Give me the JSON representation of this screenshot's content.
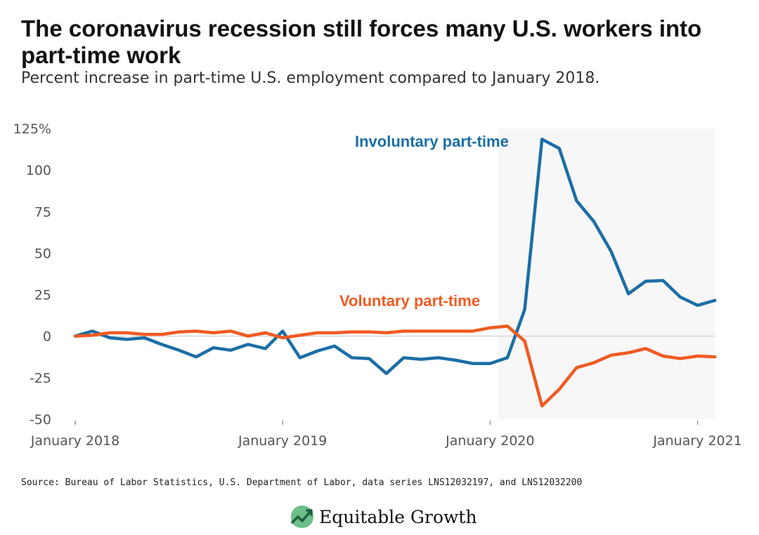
{
  "title": "The coronavirus recession still forces many U.S. workers into part-time work",
  "subtitle": "Percent increase in part-time U.S. employment compared to January 2018.",
  "source": "Source: Bureau of Labor Statistics, U.S. Department of Labor, data series LNS12032197, and LNS12032200",
  "logo_text": "Equitable Growth",
  "colors": {
    "involuntary": "#1a6ea6",
    "voluntary": "#f05a22",
    "shade": "#f7f7f7",
    "zero_line": "#dddddd"
  },
  "chart_data": {
    "type": "line",
    "title": "The coronavirus recession still forces many U.S. workers into part-time work",
    "subtitle": "Percent increase in part-time U.S. employment compared to January 2018.",
    "ylim": [
      -50,
      125
    ],
    "y_ticks": [
      -50,
      -25,
      0,
      25,
      50,
      75,
      100,
      125
    ],
    "y_tick_labels": [
      "-50",
      "-25",
      "0",
      "25",
      "50",
      "75",
      "100",
      "125%"
    ],
    "x_ticks": [
      "2018-01",
      "2019-01",
      "2020-01",
      "2021-01"
    ],
    "x_tick_labels": [
      "January 2018",
      "January 2019",
      "January 2020",
      "January 2021"
    ],
    "x_range": [
      "2018-01",
      "2021-02"
    ],
    "shaded_region": [
      "2020-02",
      "2021-02"
    ],
    "grid": false,
    "x": [
      "2018-01",
      "2018-02",
      "2018-03",
      "2018-04",
      "2018-05",
      "2018-06",
      "2018-07",
      "2018-08",
      "2018-09",
      "2018-10",
      "2018-11",
      "2018-12",
      "2019-01",
      "2019-02",
      "2019-03",
      "2019-04",
      "2019-05",
      "2019-06",
      "2019-07",
      "2019-08",
      "2019-09",
      "2019-10",
      "2019-11",
      "2019-12",
      "2020-01",
      "2020-02",
      "2020-03",
      "2020-04",
      "2020-05",
      "2020-06",
      "2020-07",
      "2020-08",
      "2020-09",
      "2020-10",
      "2020-11",
      "2020-12",
      "2021-01",
      "2021-02"
    ],
    "series": [
      {
        "name": "Involuntary part-time",
        "values": [
          0,
          3,
          -1,
          -2,
          -1,
          -5,
          -8.5,
          -12.5,
          -7,
          -8.5,
          -5,
          -7.5,
          3,
          -13,
          -9,
          -6,
          -13,
          -13.5,
          -22.5,
          -13,
          -14,
          -13,
          -14.5,
          -16.5,
          -16.5,
          -13,
          16,
          118.5,
          113,
          81.5,
          69,
          51,
          25.5,
          33,
          33.5,
          23.5,
          18.5,
          21.5
        ]
      },
      {
        "name": "Voluntary part-time",
        "values": [
          0,
          0.5,
          2,
          2,
          1,
          1,
          2.5,
          3,
          2,
          3,
          0,
          2,
          -1,
          0.5,
          2,
          2,
          2.5,
          2.5,
          2,
          3,
          3,
          3,
          3,
          3,
          5,
          6,
          -3,
          -42,
          -32,
          -19,
          -16,
          -11.5,
          -10,
          -7.5,
          -12,
          -13.5,
          -12,
          -12.5
        ]
      }
    ]
  }
}
